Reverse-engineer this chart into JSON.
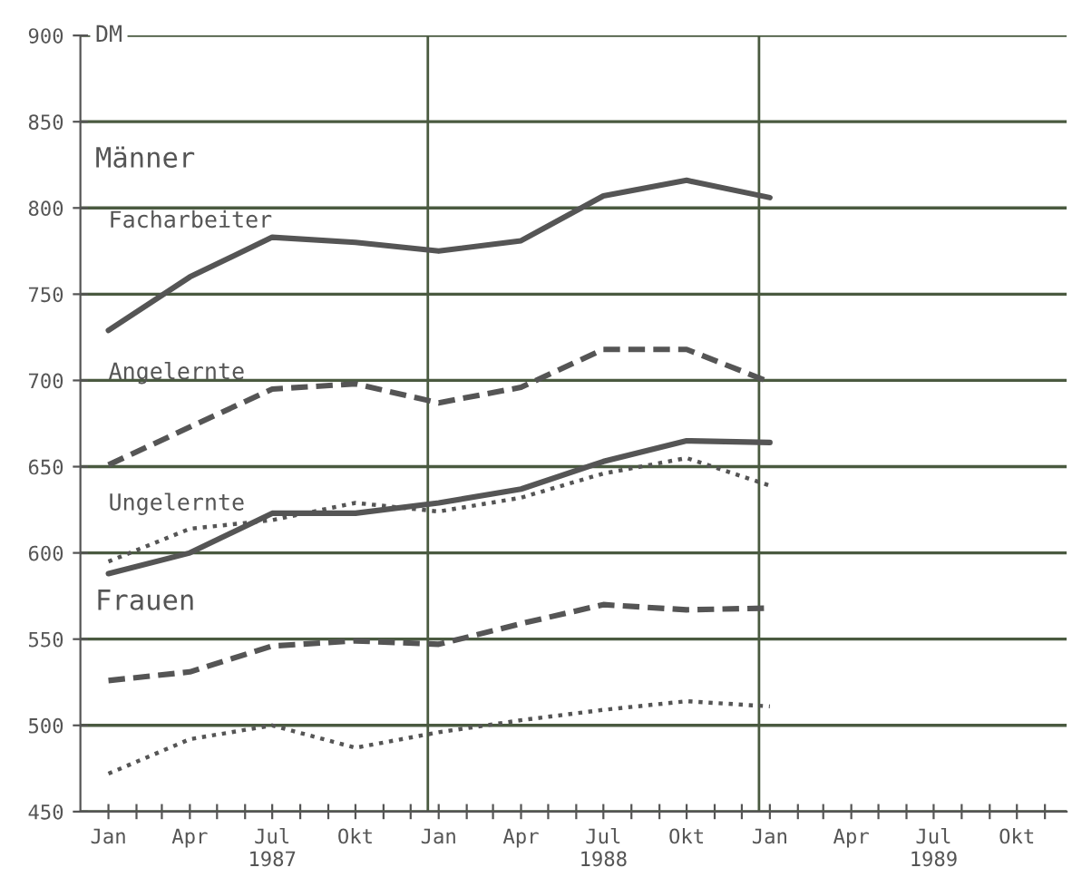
{
  "chart_data": {
    "type": "line",
    "ylabel": "DM",
    "x": [
      "1987-01",
      "1987-04",
      "1987-07",
      "1987-10",
      "1988-01",
      "1988-04",
      "1988-07",
      "1988-10",
      "1989-01"
    ],
    "series": [
      {
        "name": "Facharbeiter",
        "color": "#555555",
        "line_style": "solid",
        "values": [
          729,
          760,
          783,
          780,
          775,
          781,
          807,
          816,
          806
        ]
      },
      {
        "name": "Angelernte",
        "color": "#555555",
        "line_style": "dashed",
        "values": [
          651,
          673,
          695,
          698,
          687,
          696,
          718,
          718,
          699
        ]
      },
      {
        "name": "Ungelernte",
        "color": "#555555",
        "line_style": "dotted",
        "values": [
          595,
          614,
          619,
          629,
          624,
          632,
          646,
          655,
          639
        ]
      },
      {
        "color": "#555555",
        "line_style": "solid",
        "values": [
          588,
          600,
          623,
          623,
          629,
          637,
          653,
          665,
          664
        ]
      },
      {
        "color": "#555555",
        "line_style": "dashed",
        "values": [
          526,
          531,
          546,
          549,
          547,
          559,
          570,
          567,
          568
        ]
      },
      {
        "color": "#555555",
        "line_style": "dotted",
        "values": [
          472,
          492,
          500,
          487,
          496,
          503,
          509,
          514,
          511
        ]
      }
    ],
    "annotations": [
      "Männer",
      "Frauen"
    ],
    "ylim": [
      450,
      900
    ],
    "yticks": [
      450,
      500,
      550,
      600,
      650,
      700,
      750,
      800,
      850,
      900
    ],
    "xlim": [
      "1986-12-01",
      "1989-11-25"
    ],
    "xticks": [
      {
        "value": "1987-01",
        "label": "Jan"
      },
      {
        "value": "1987-02",
        "label": null
      },
      {
        "value": "1987-03",
        "label": null
      },
      {
        "value": "1987-04",
        "label": "Apr"
      },
      {
        "value": "1987-05",
        "label": null
      },
      {
        "value": "1987-06",
        "label": null
      },
      {
        "value": "1987-07",
        "label": "Jul\n1987"
      },
      {
        "value": "1987-08",
        "label": null
      },
      {
        "value": "1987-09",
        "label": null
      },
      {
        "value": "1987-10",
        "label": "Okt"
      },
      {
        "value": "1987-11",
        "label": null
      },
      {
        "value": "1987-12",
        "label": null
      },
      {
        "value": "1988-01",
        "label": "Jan"
      },
      {
        "value": "1988-02",
        "label": null
      },
      {
        "value": "1988-03",
        "label": null
      },
      {
        "value": "1988-04",
        "label": "Apr"
      },
      {
        "value": "1988-05",
        "label": null
      },
      {
        "value": "1988-06",
        "label": null
      },
      {
        "value": "1988-07",
        "label": "Jul\n1988"
      },
      {
        "value": "1988-08",
        "label": null
      },
      {
        "value": "1988-09",
        "label": null
      },
      {
        "value": "1988-10",
        "label": "Okt"
      },
      {
        "value": "1988-11",
        "label": null
      },
      {
        "value": "1988-12",
        "label": null
      },
      {
        "value": "1989-01",
        "label": "Jan"
      },
      {
        "value": "1989-02",
        "label": null
      },
      {
        "value": "1989-03",
        "label": null
      },
      {
        "value": "1989-04",
        "label": "Apr"
      },
      {
        "value": "1989-05",
        "label": null
      },
      {
        "value": "1989-06",
        "label": null
      },
      {
        "value": "1989-07",
        "label": "Jul\n1989"
      },
      {
        "value": "1989-08",
        "label": null
      },
      {
        "value": "1989-09",
        "label": null
      },
      {
        "value": "1989-10",
        "label": "Okt"
      },
      {
        "value": "1989-11",
        "label": null
      }
    ],
    "ref_lines": [
      {
        "axis": "x",
        "value": "1987-12-20",
        "color": "#4a5a40"
      },
      {
        "axis": "x",
        "value": "1988-12-20",
        "color": "#4a5a40"
      }
    ],
    "grid": "y",
    "legend": false
  }
}
